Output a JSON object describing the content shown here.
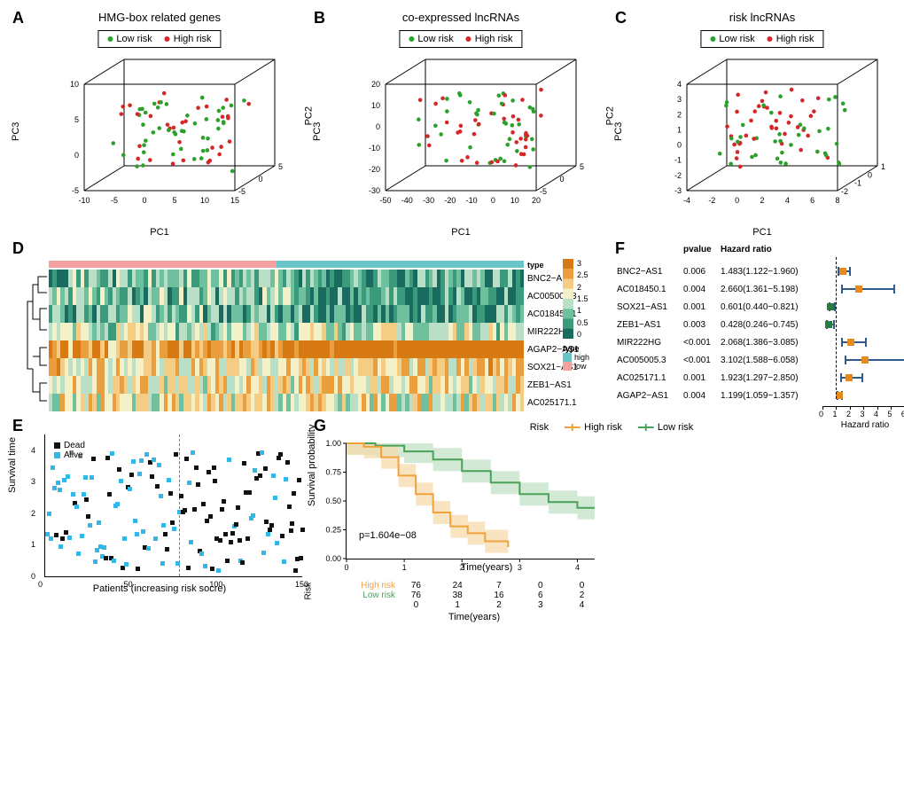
{
  "panels": {
    "A": {
      "label": "A",
      "title": "HMG-box related genes",
      "legend": [
        "Low risk",
        "High risk"
      ],
      "legend_colors": [
        "#2ba02b",
        "#d62728"
      ],
      "axes": {
        "x": "PC1",
        "y": "PC3",
        "z": "PC2",
        "x_ticks": [
          -10,
          -5,
          0,
          5,
          10,
          15
        ],
        "y_ticks": [
          -5,
          0,
          5,
          10
        ],
        "z_ticks": [
          -5,
          0,
          5
        ]
      },
      "point_color_low": "#2ba02b",
      "point_color_high": "#d62728"
    },
    "B": {
      "label": "B",
      "title": "co-expressed lncRNAs",
      "legend": [
        "Low risk",
        "High risk"
      ],
      "legend_colors": [
        "#2ba02b",
        "#d62728"
      ],
      "axes": {
        "x": "PC1",
        "y": "PC3",
        "z": "PC2",
        "x_ticks": [
          -50,
          -40,
          -30,
          -20,
          -10,
          0,
          10,
          20
        ],
        "y_ticks": [
          -30,
          -20,
          -10,
          0,
          10,
          20
        ],
        "z_ticks": [
          -5,
          0,
          5
        ]
      }
    },
    "C": {
      "label": "C",
      "title": "risk lncRNAs",
      "legend": [
        "Low risk",
        "High risk"
      ],
      "legend_colors": [
        "#2ba02b",
        "#d62728"
      ],
      "axes": {
        "x": "PC1",
        "y": "PC3",
        "z": "PC2",
        "x_ticks": [
          -4,
          -2,
          0,
          2,
          4,
          6,
          8
        ],
        "y_ticks": [
          -3,
          -2,
          -1,
          0,
          1,
          2,
          3,
          4
        ],
        "z_ticks": [
          -2,
          -1,
          0,
          1
        ]
      }
    },
    "D": {
      "label": "D",
      "row_labels": [
        "BNC2−AS1",
        "AC005005.3",
        "AC018450.1",
        "MIR222HG",
        "AGAP2−AS1",
        "SOX21−AS1",
        "ZEB1−AS1",
        "AC025171.1"
      ],
      "type_colors": {
        "high": "#6ac5c8",
        "low": "#f4a0a0"
      },
      "colorbar": {
        "min": 0,
        "max": 3,
        "ticks": [
          0,
          0.5,
          1,
          1.5,
          2,
          2.5,
          3
        ],
        "stops": [
          "#1a6b5f",
          "#3b9a7c",
          "#6fc09f",
          "#b9e0c6",
          "#f4f0c7",
          "#f5cc84",
          "#eb9e3d",
          "#d87a14"
        ]
      },
      "typebar_split": 0.48
    },
    "E": {
      "label": "E",
      "xlabel": "Patients (increasing risk socre)",
      "ylabel": "Survival time",
      "legend": [
        "Dead",
        "Alive"
      ],
      "legend_colors": [
        "#111111",
        "#31b7e8"
      ],
      "x_range": [
        0,
        150
      ],
      "y_range": [
        0,
        4.5
      ],
      "x_ticks": [
        0,
        50,
        100,
        150
      ],
      "y_ticks": [
        0,
        1,
        2,
        3,
        4
      ],
      "vline_at": 78
    },
    "F": {
      "label": "F",
      "xlabel": "Hazard ratio",
      "col_headers": [
        "",
        "pvalue",
        "Hazard ratio"
      ],
      "x_ticks": [
        0,
        1,
        2,
        3,
        4,
        5,
        6
      ],
      "ref_line": 1.0,
      "rows": [
        {
          "gene": "BNC2−AS1",
          "p": "0.006",
          "hr": "1.483(1.122−1.960)",
          "est": 1.483,
          "lo": 1.122,
          "hi": 1.96,
          "color": "#e68a1e"
        },
        {
          "gene": "AC018450.1",
          "p": "0.004",
          "hr": "2.660(1.361−5.198)",
          "est": 2.66,
          "lo": 1.361,
          "hi": 5.198,
          "color": "#e68a1e"
        },
        {
          "gene": "SOX21−AS1",
          "p": "0.001",
          "hr": "0.601(0.440−0.821)",
          "est": 0.601,
          "lo": 0.44,
          "hi": 0.821,
          "color": "#2b7a3f"
        },
        {
          "gene": "ZEB1−AS1",
          "p": "0.003",
          "hr": "0.428(0.246−0.745)",
          "est": 0.428,
          "lo": 0.246,
          "hi": 0.745,
          "color": "#2b7a3f"
        },
        {
          "gene": "MIR222HG",
          "p": "<0.001",
          "hr": "2.068(1.386−3.085)",
          "est": 2.068,
          "lo": 1.386,
          "hi": 3.085,
          "color": "#e68a1e"
        },
        {
          "gene": "AC005005.3",
          "p": "<0.001",
          "hr": "3.102(1.588−6.058)",
          "est": 3.102,
          "lo": 1.588,
          "hi": 6.058,
          "color": "#e68a1e"
        },
        {
          "gene": "AC025171.1",
          "p": "0.001",
          "hr": "1.923(1.297−2.850)",
          "est": 1.923,
          "lo": 1.297,
          "hi": 2.85,
          "color": "#e68a1e"
        },
        {
          "gene": "AGAP2−AS1",
          "p": "0.004",
          "hr": "1.199(1.059−1.357)",
          "est": 1.199,
          "lo": 1.059,
          "hi": 1.357,
          "color": "#e68a1e"
        }
      ]
    },
    "G": {
      "label": "G",
      "legend": [
        "High risk",
        "Low risk"
      ],
      "legend_title": "Risk",
      "legend_colors": [
        "#f2a23a",
        "#4aa158"
      ],
      "xlabel": "Time(years)",
      "ylabel": "Survival probability",
      "x_ticks": [
        0,
        1,
        2,
        3,
        4
      ],
      "y_ticks": [
        0.0,
        0.25,
        0.5,
        0.75,
        1.0
      ],
      "pvalue": "p=1.604e−08",
      "risk_table": {
        "header": "Risk",
        "times": [
          0,
          1,
          2,
          3,
          4
        ],
        "high": {
          "label": "High risk",
          "counts": [
            76,
            24,
            7,
            0,
            0
          ],
          "color": "#f2a23a"
        },
        "low": {
          "label": "Low risk",
          "counts": [
            76,
            38,
            16,
            6,
            2
          ],
          "color": "#4aa158"
        }
      },
      "curves": {
        "high": [
          [
            0,
            1.0
          ],
          [
            0.3,
            0.97
          ],
          [
            0.6,
            0.88
          ],
          [
            0.9,
            0.72
          ],
          [
            1.2,
            0.56
          ],
          [
            1.5,
            0.4
          ],
          [
            1.8,
            0.28
          ],
          [
            2.1,
            0.22
          ],
          [
            2.4,
            0.15
          ],
          [
            2.8,
            0.1
          ]
        ],
        "low": [
          [
            0,
            1.0
          ],
          [
            0.5,
            0.98
          ],
          [
            1.0,
            0.93
          ],
          [
            1.5,
            0.86
          ],
          [
            2.0,
            0.76
          ],
          [
            2.5,
            0.66
          ],
          [
            3.0,
            0.56
          ],
          [
            3.5,
            0.49
          ],
          [
            4.0,
            0.44
          ],
          [
            4.3,
            0.44
          ]
        ]
      },
      "ci_fill": {
        "high": "#f7d8a8",
        "low": "#bfe0c4"
      }
    }
  },
  "styling": {
    "background": "#ffffff",
    "font": "Arial",
    "panel_label_fontsize": 18,
    "axis_fontsize": 11,
    "tick_fontsize": 9,
    "legend_fontsize": 11,
    "heat_cell_height": 20
  }
}
